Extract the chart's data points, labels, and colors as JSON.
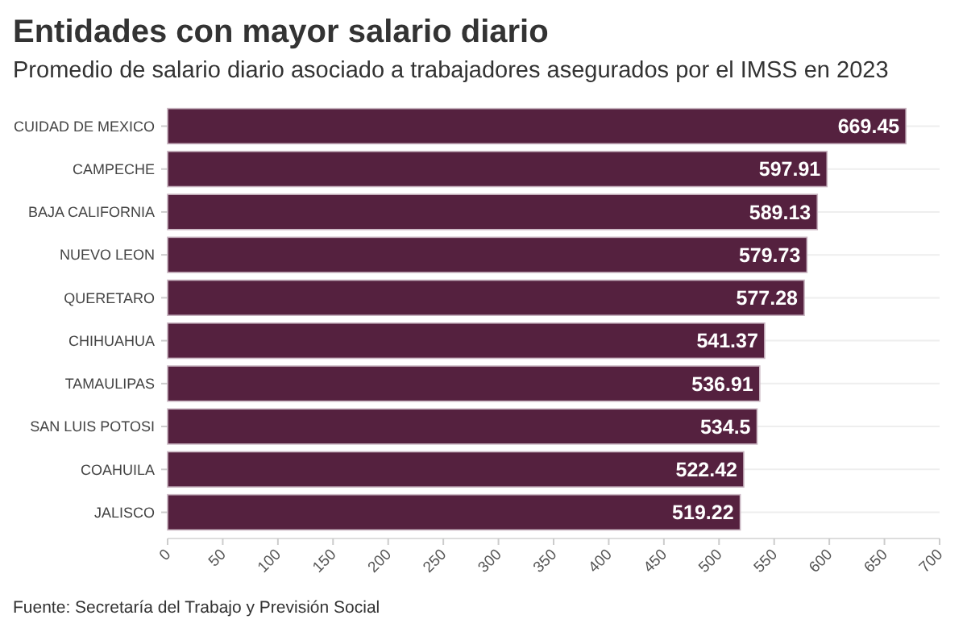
{
  "chart_data": {
    "type": "bar",
    "orientation": "horizontal",
    "title": "Entidades con mayor salario diario",
    "subtitle": "Promedio de salario diario asociado a trabajadores asegurados por el IMSS en 2023",
    "categories": [
      "CUIDAD DE MEXICO",
      "CAMPECHE",
      "BAJA CALIFORNIA",
      "NUEVO LEON",
      "QUERETARO",
      "CHIHUAHUA",
      "TAMAULIPAS",
      "SAN LUIS POTOSI",
      "COAHUILA",
      "JALISCO"
    ],
    "values": [
      669.45,
      597.91,
      589.13,
      579.73,
      577.28,
      541.37,
      536.91,
      534.5,
      522.42,
      519.22
    ],
    "color": "#55213f",
    "data_labels": true,
    "grid": "y",
    "xlim": [
      0,
      700
    ],
    "xticks": [
      0,
      50,
      100,
      150,
      200,
      250,
      300,
      350,
      400,
      450,
      500,
      550,
      600,
      650,
      700
    ],
    "annotations": [
      "Fuente: Secretaría del Trabajo y Previsión Social"
    ]
  }
}
